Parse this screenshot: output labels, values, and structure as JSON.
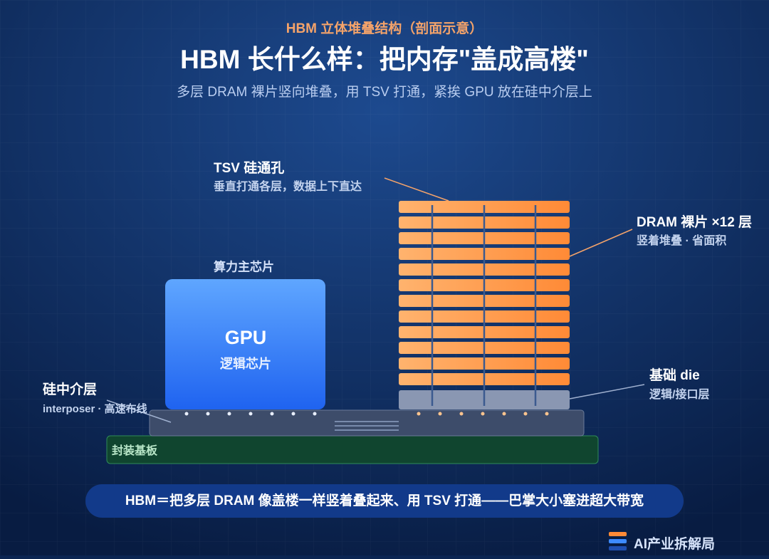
{
  "header": {
    "eyebrow": "HBM 立体堆叠结构（剖面示意）",
    "title": "HBM 长什么样：把内存\"盖成高楼\"",
    "subtitle": "多层 DRAM 裸片竖向堆叠，用 TSV 打通，紧挨 GPU 放在硅中介层上"
  },
  "tsv": {
    "label": "TSV 硅通孔",
    "note": "垂直打通各层，数据上下直达"
  },
  "dram": {
    "label": "DRAM 裸片 ×12 层",
    "note": "竖着堆叠 · 省面积"
  },
  "base_die": {
    "label": "基础 die",
    "note": "逻辑/接口层"
  },
  "gpu": {
    "caption": "算力主芯片",
    "label": "GPU",
    "note": "逻辑芯片"
  },
  "interposer": {
    "label": "硅中介层",
    "note": "interposer · 高速布线"
  },
  "substrate": {
    "label": "封装基板"
  },
  "footer": {
    "summary": "HBM＝把多层 DRAM 像盖楼一样竖着叠起来、用 TSV 打通——巴掌大小塞进超大带宽",
    "brand": "AI产业拆解局"
  }
}
